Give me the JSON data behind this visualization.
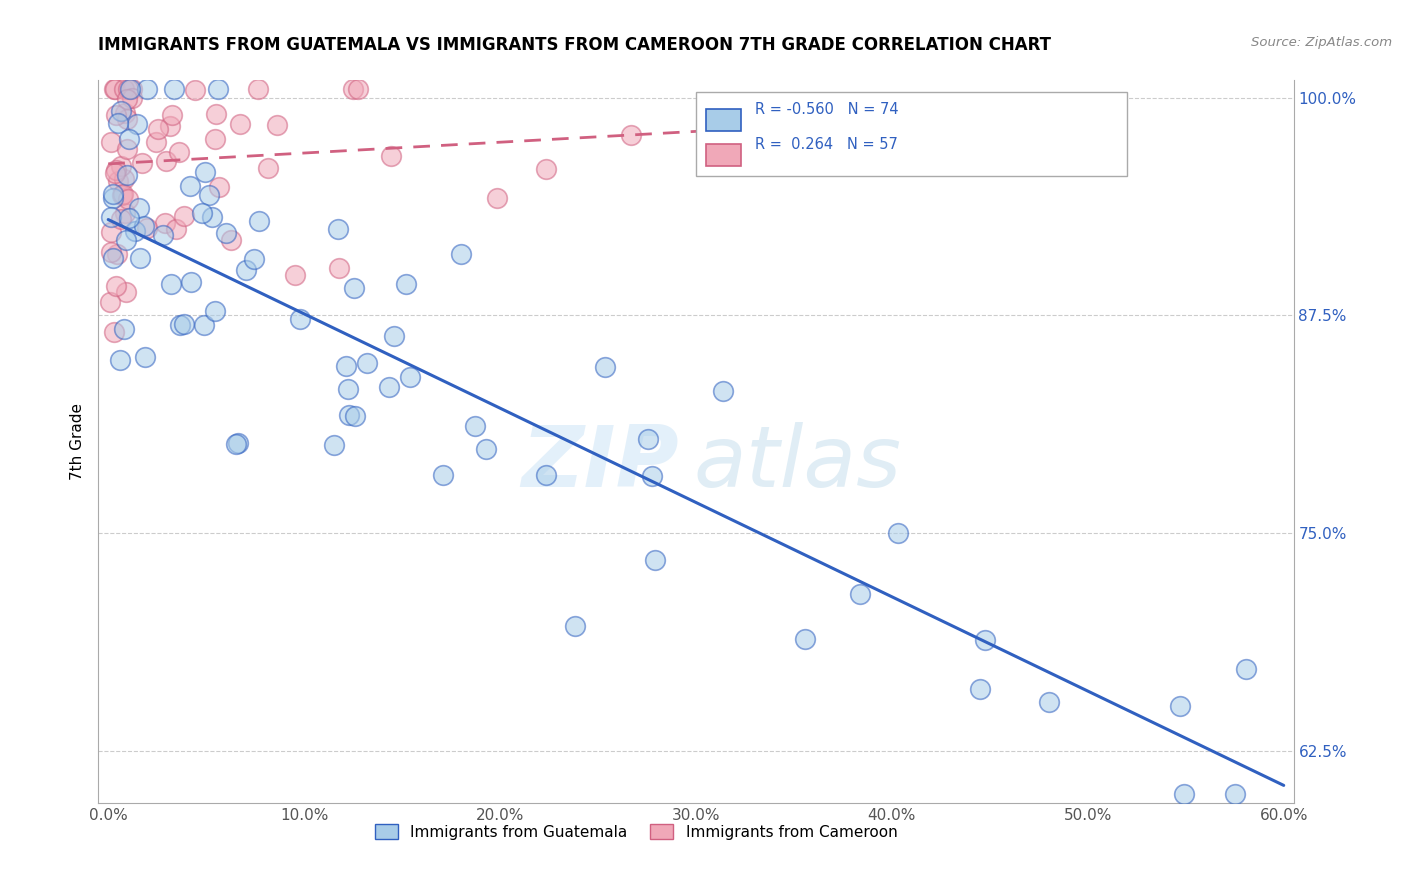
{
  "title": "IMMIGRANTS FROM GUATEMALA VS IMMIGRANTS FROM CAMEROON 7TH GRADE CORRELATION CHART",
  "source": "Source: ZipAtlas.com",
  "ylabel": "7th Grade",
  "xlabel_guatemala": "Immigrants from Guatemala",
  "xlabel_cameroon": "Immigrants from Cameroon",
  "xlim": [
    -0.005,
    0.605
  ],
  "ylim": [
    0.595,
    1.01
  ],
  "xticks": [
    0.0,
    0.1,
    0.2,
    0.3,
    0.4,
    0.5,
    0.6
  ],
  "xticklabels": [
    "0.0%",
    "10.0%",
    "20.0%",
    "30.0%",
    "40.0%",
    "50.0%",
    "60.0%"
  ],
  "yticks": [
    0.625,
    0.75,
    0.875,
    1.0
  ],
  "yticklabels": [
    "62.5%",
    "75.0%",
    "87.5%",
    "100.0%"
  ],
  "r_guatemala": -0.56,
  "n_guatemala": 74,
  "r_cameroon": 0.264,
  "n_cameroon": 57,
  "color_guatemala": "#a8cce8",
  "color_cameroon": "#f0a8b8",
  "line_color_guatemala": "#3060c0",
  "line_color_cameroon": "#d06080",
  "watermark_zip": "ZIP",
  "watermark_atlas": "atlas"
}
